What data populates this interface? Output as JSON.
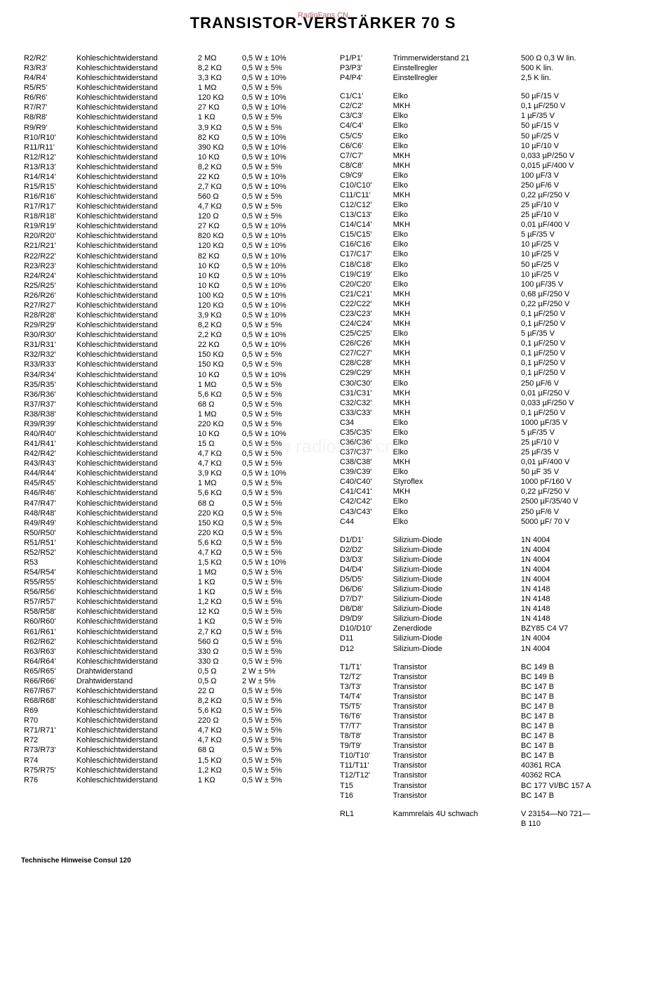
{
  "title": "TRANSISTOR-VERSTÄRKER 70 S",
  "watermark_top": "RadioFans.CN",
  "watermark_mid": "www     radiofans cn",
  "footer": "Technische Hinweise Consul 120",
  "left": [
    {
      "r": "R2/R2'",
      "t": "Kohleschichtwiderstand",
      "v": "2 MΩ",
      "p": "0,5 W ± 10%"
    },
    {
      "r": "R3/R3'",
      "t": "Kohleschichtwiderstand",
      "v": "8,2 KΩ",
      "p": "0,5 W ±   5%"
    },
    {
      "r": "R4/R4'",
      "t": "Kohleschichtwiderstand",
      "v": "3,3 KΩ",
      "p": "0,5 W ± 10%"
    },
    {
      "r": "R5/R5'",
      "t": "Kohleschichtwiderstand",
      "v": "1 MΩ",
      "p": "0,5 W ±   5%"
    },
    {
      "r": "R6/R6'",
      "t": "Kohleschichtwiderstand",
      "v": "120 KΩ",
      "p": "0,5 W ± 10%"
    },
    {
      "r": "R7/R7'",
      "t": "Kohleschichtwiderstand",
      "v": "27 KΩ",
      "p": "0,5 W ± 10%"
    },
    {
      "r": "R8/R8'",
      "t": "Kohleschichtwiderstand",
      "v": "1 KΩ",
      "p": "0,5 W ±   5%"
    },
    {
      "r": "R9/R9'",
      "t": "Kohleschichtwiderstand",
      "v": "3,9 KΩ",
      "p": "0,5 W ±   5%"
    },
    {
      "r": "R10/R10'",
      "t": "Kohleschichtwiderstand",
      "v": "82 KΩ",
      "p": "0,5 W ± 10%"
    },
    {
      "r": "R11/R11'",
      "t": "Kohleschichtwiderstand",
      "v": "390 KΩ",
      "p": "0,5 W ± 10%"
    },
    {
      "r": "R12/R12'",
      "t": "Kohleschichtwiderstand",
      "v": "10 KΩ",
      "p": "0,5 W ± 10%"
    },
    {
      "r": "R13/R13'",
      "t": "Kohleschichtwiderstand",
      "v": "8,2 KΩ",
      "p": "0,5 W ±   5%"
    },
    {
      "r": "R14/R14'",
      "t": "Kohleschichtwiderstand",
      "v": "22 KΩ",
      "p": "0,5 W ± 10%"
    },
    {
      "r": "R15/R15'",
      "t": "Kohleschichtwiderstand",
      "v": "2,7 KΩ",
      "p": "0,5 W ± 10%"
    },
    {
      "r": "R16/R16'",
      "t": "Kohleschichtwiderstand",
      "v": "560 Ω",
      "p": "0,5 W ±   5%"
    },
    {
      "r": "R17/R17'",
      "t": "Kohleschichtwiderstand",
      "v": "4,7 KΩ",
      "p": "0,5 W ±   5%"
    },
    {
      "r": "R18/R18'",
      "t": "Kohleschichtwiderstand",
      "v": "120 Ω",
      "p": "0,5 W ±   5%"
    },
    {
      "r": "R19/R19'",
      "t": "Kohleschichtwiderstand",
      "v": "27 KΩ",
      "p": "0,5 W ± 10%"
    },
    {
      "r": "R20/R20'",
      "t": "Kohleschichtwiderstand",
      "v": "820 KΩ",
      "p": "0,5 W ± 10%"
    },
    {
      "r": "R21/R21'",
      "t": "Kohleschichtwiderstand",
      "v": "120 KΩ",
      "p": "0,5 W ± 10%"
    },
    {
      "r": "R22/R22'",
      "t": "Kohleschichtwiderstand",
      "v": "82 KΩ",
      "p": "0,5 W ± 10%"
    },
    {
      "r": "R23/R23'",
      "t": "Kohleschichtwiderstand",
      "v": "10 KΩ",
      "p": "0,5 W ± 10%"
    },
    {
      "r": "R24/R24'",
      "t": "Kohleschichtwiderstand",
      "v": "10 KΩ",
      "p": "0,5 W ± 10%"
    },
    {
      "r": "R25/R25'",
      "t": "Kohleschichtwiderstand",
      "v": "10 KΩ",
      "p": "0,5 W ± 10%"
    },
    {
      "r": "R26/R26'",
      "t": "Kohleschichtwiderstand",
      "v": "100 KΩ",
      "p": "0,5 W ± 10%"
    },
    {
      "r": "R27/R27'",
      "t": "Kohleschichtwiderstand",
      "v": "120 KΩ",
      "p": "0,5 W ± 10%"
    },
    {
      "r": "R28/R28'",
      "t": "Kohleschichtwiderstand",
      "v": "3,9 KΩ",
      "p": "0,5 W ± 10%"
    },
    {
      "r": "R29/R29'",
      "t": "Kohleschichtwiderstand",
      "v": "8,2 KΩ",
      "p": "0,5 W ±   5%"
    },
    {
      "r": "R30/R30'",
      "t": "Kohleschichtwiderstand",
      "v": "2,2 KΩ",
      "p": "0,5 W ± 10%"
    },
    {
      "r": "R31/R31'",
      "t": "Kohleschichtwiderstand",
      "v": "22 KΩ",
      "p": "0,5 W ± 10%"
    },
    {
      "r": "R32/R32'",
      "t": "Kohleschichtwiderstand",
      "v": "150 KΩ",
      "p": "0,5 W ±   5%"
    },
    {
      "r": "R33/R33'",
      "t": "Kohleschichtwiderstand",
      "v": "150 KΩ",
      "p": "0,5 W ±   5%"
    },
    {
      "r": "R34/R34'",
      "t": "Kohleschichtwiderstand",
      "v": "10 KΩ",
      "p": "0,5 W ± 10%"
    },
    {
      "r": "R35/R35'",
      "t": "Kohleschichtwiderstand",
      "v": "1 MΩ",
      "p": "0,5 W ±   5%"
    },
    {
      "r": "R36/R36'",
      "t": "Kohleschichtwiderstand",
      "v": "5,6 KΩ",
      "p": "0,5 W ±   5%"
    },
    {
      "r": "R37/R37'",
      "t": "Kohleschichtwiderstand",
      "v": "68 Ω",
      "p": "0,5 W ±   5%"
    },
    {
      "r": "R38/R38'",
      "t": "Kohleschichtwiderstand",
      "v": "1 MΩ",
      "p": "0,5 W ±   5%"
    },
    {
      "r": "R39/R39'",
      "t": "Kohleschichtwiderstand",
      "v": "220 KΩ",
      "p": "0,5 W ±   5%"
    },
    {
      "r": "R40/R40'",
      "t": "Kohleschichtwiderstand",
      "v": "10 KΩ",
      "p": "0,5 W ± 10%"
    },
    {
      "r": "R41/R41'",
      "t": "Kohleschichtwiderstand",
      "v": "15 Ω",
      "p": "0,5 W ±   5%"
    },
    {
      "r": "R42/R42'",
      "t": "Kohleschichtwiderstand",
      "v": "4,7 KΩ",
      "p": "0,5 W ±   5%"
    },
    {
      "r": "R43/R43'",
      "t": "Kohleschichtwiderstand",
      "v": "4,7 KΩ",
      "p": "0,5 W ±   5%"
    },
    {
      "r": "R44/R44'",
      "t": "Kohleschichtwiderstand",
      "v": "3,9 KΩ",
      "p": "0,5 W ± 10%"
    },
    {
      "r": "R45/R45'",
      "t": "Kohleschichtwiderstand",
      "v": "1 MΩ",
      "p": "0,5 W ±   5%"
    },
    {
      "r": "R46/R46'",
      "t": "Kohleschichtwiderstand",
      "v": "5,6 KΩ",
      "p": "0,5 W ±   5%"
    },
    {
      "r": "R47/R47'",
      "t": "Kohleschichtwiderstand",
      "v": "68 Ω",
      "p": "0,5 W ±   5%"
    },
    {
      "r": "R48/R48'",
      "t": "Kohleschichtwiderstand",
      "v": "220 KΩ",
      "p": "0,5 W ±   5%"
    },
    {
      "r": "R49/R49'",
      "t": "Kohleschichtwiderstand",
      "v": "150 KΩ",
      "p": "0,5 W ±   5%"
    },
    {
      "r": "R50/R50'",
      "t": "Kohleschichtwiderstand",
      "v": "220 KΩ",
      "p": "0,5 W ±   5%"
    },
    {
      "r": "R51/R51'",
      "t": "Kohleschichtwiderstand",
      "v": "5,6 KΩ",
      "p": "0,5 W ±   5%"
    },
    {
      "r": "R52/R52'",
      "t": "Kohleschichtwiderstand",
      "v": "4,7 KΩ",
      "p": "0,5 W ±   5%"
    },
    {
      "r": "R53",
      "t": "Kohleschichtwiderstand",
      "v": "1,5 KΩ",
      "p": "0,5 W ± 10%"
    },
    {
      "r": "R54/R54'",
      "t": "Kohleschichtwiderstand",
      "v": "1 MΩ",
      "p": "0,5 W ±   5%"
    },
    {
      "r": "R55/R55'",
      "t": "Kohleschichtwiderstand",
      "v": "1 KΩ",
      "p": "0,5 W ±   5%"
    },
    {
      "r": "R56/R56'",
      "t": "Kohleschichtwiderstand",
      "v": "1 KΩ",
      "p": "0,5 W ±   5%"
    },
    {
      "r": "R57/R57'",
      "t": "Kohleschichtwiderstand",
      "v": "1,2 KΩ",
      "p": "0,5 W ±   5%"
    },
    {
      "r": "R58/R58'",
      "t": "Kohleschichtwiderstand",
      "v": "12 KΩ",
      "p": "0,5 W ±   5%"
    },
    {
      "r": "R60/R60'",
      "t": "Kohleschichtwiderstand",
      "v": "1 KΩ",
      "p": "0,5 W ±   5%"
    },
    {
      "r": "R61/R61'",
      "t": "Kohleschichtwiderstand",
      "v": "2,7 KΩ",
      "p": "0,5 W ±   5%"
    },
    {
      "r": "R62/R62'",
      "t": "Kohleschichtwiderstand",
      "v": "560 Ω",
      "p": "0,5 W ±   5%"
    },
    {
      "r": "R63/R63'",
      "t": "Kohleschichtwiderstand",
      "v": "330 Ω",
      "p": "0,5 W ±   5%"
    },
    {
      "r": "R64/R64'",
      "t": "Kohleschichtwiderstand",
      "v": "330 Ω",
      "p": "0,5 W ±   5%"
    },
    {
      "r": "R65/R65'",
      "t": "Drahtwiderstand",
      "v": "0,5 Ω",
      "p": "2 W ±   5%"
    },
    {
      "r": "R66/R66'",
      "t": "Drahtwiderstand",
      "v": "0,5 Ω",
      "p": "2 W ±   5%"
    },
    {
      "r": "R67/R67'",
      "t": "Kohleschichtwiderstand",
      "v": "22 Ω",
      "p": "0,5 W ±   5%"
    },
    {
      "r": "R68/R68'",
      "t": "Kohleschichtwiderstand",
      "v": "8,2 KΩ",
      "p": "0,5 W ±   5%"
    },
    {
      "r": "R69",
      "t": "Kohleschichtwiderstand",
      "v": "5,6 KΩ",
      "p": "0,5 W ±   5%"
    },
    {
      "r": "R70",
      "t": "Kohleschichtwiderstand",
      "v": "220 Ω",
      "p": "0,5 W ±   5%"
    },
    {
      "r": "R71/R71'",
      "t": "Kohleschichtwiderstand",
      "v": "4,7 KΩ",
      "p": "0,5 W ±   5%"
    },
    {
      "r": "R72",
      "t": "Kohleschichtwiderstand",
      "v": "4,7 KΩ",
      "p": "0,5 W ±   5%"
    },
    {
      "r": "R73/R73'",
      "t": "Kohleschichtwiderstand",
      "v": "68 Ω",
      "p": "0,5 W ±   5%"
    },
    {
      "r": "R74",
      "t": "Kohleschichtwiderstand",
      "v": "1,5 KΩ",
      "p": "0,5 W ±   5%"
    },
    {
      "r": "R75/R75'",
      "t": "Kohleschichtwiderstand",
      "v": "1,2 KΩ",
      "p": "0,5 W ±   5%"
    },
    {
      "r": "R76",
      "t": "Kohleschichtwiderstand",
      "v": "1 KΩ",
      "p": "0,5 W ±   5%"
    }
  ],
  "right": [
    [
      {
        "r": "P1/P1'",
        "t": "Trimmerwiderstand 21",
        "v": "500 Ω  0,3 W lin."
      },
      {
        "r": "P3/P3'",
        "t": "Einstellregler",
        "v": "500 K lin."
      },
      {
        "r": "P4/P4'",
        "t": "Einstellregler",
        "v": "2,5 K lin."
      }
    ],
    [
      {
        "r": "C1/C1'",
        "t": "Elko",
        "v": "50 µF/15 V"
      },
      {
        "r": "C2/C2'",
        "t": "MKH",
        "v": "0,1 µF/250 V"
      },
      {
        "r": "C3/C3'",
        "t": "Elko",
        "v": "1 µF/35 V"
      },
      {
        "r": "C4/C4'",
        "t": "Elko",
        "v": "50 µF/15 V"
      },
      {
        "r": "C5/C5'",
        "t": "Elko",
        "v": "50 µF/25 V"
      },
      {
        "r": "C6/C6'",
        "t": "Elko",
        "v": "10 µF/10 V"
      },
      {
        "r": "C7/C7'",
        "t": "MKH",
        "v": "0,033 µP/250 V"
      },
      {
        "r": "C8/C8'",
        "t": "MKH",
        "v": "0,015 µF/400 V"
      },
      {
        "r": "C9/C9'",
        "t": "Elko",
        "v": "100 µF/3 V"
      },
      {
        "r": "C10/C10'",
        "t": "Elko",
        "v": "250 µF/6 V"
      },
      {
        "r": "C11/C11'",
        "t": "MKH",
        "v": "0,22 µF/250 V"
      },
      {
        "r": "C12/C12'",
        "t": "Elko",
        "v": "25 µF/10 V"
      },
      {
        "r": "C13/C13'",
        "t": "Elko",
        "v": "25 µF/10 V"
      },
      {
        "r": "C14/C14'",
        "t": "MKH",
        "v": "0,01 µF/400 V"
      },
      {
        "r": "C15/C15'",
        "t": "Elko",
        "v": "5 µF/35 V"
      },
      {
        "r": "C16/C16'",
        "t": "Elko",
        "v": "10 µF/25 V"
      },
      {
        "r": "C17/C17'",
        "t": "Elko",
        "v": "10 µF/25 V"
      },
      {
        "r": "C18/C18'",
        "t": "Elko",
        "v": "50 µF/25 V"
      },
      {
        "r": "C19/C19'",
        "t": "Elko",
        "v": "10 µF/25 V"
      },
      {
        "r": "C20/C20'",
        "t": "Elko",
        "v": "100 µF/35 V"
      },
      {
        "r": "C21/C21'",
        "t": "MKH",
        "v": "0,68 µF/250 V"
      },
      {
        "r": "C22/C22'",
        "t": "MKH",
        "v": "0,22 µF/250 V"
      },
      {
        "r": "C23/C23'",
        "t": "MKH",
        "v": "0,1 µF/250 V"
      },
      {
        "r": "C24/C24'",
        "t": "MKH",
        "v": "0,1 µF/250 V"
      },
      {
        "r": "C25/C25'",
        "t": "Elko",
        "v": "5 µF/35 V"
      },
      {
        "r": "C26/C26'",
        "t": "MKH",
        "v": "0,1 µF/250 V"
      },
      {
        "r": "C27/C27'",
        "t": "MKH",
        "v": "0,1 µF/250 V"
      },
      {
        "r": "C28/C28'",
        "t": "MKH",
        "v": "0,1 µF/250 V"
      },
      {
        "r": "C29/C29'",
        "t": "MKH",
        "v": "0,1 µF/250 V"
      },
      {
        "r": "C30/C30'",
        "t": "Elko",
        "v": "250 µF/6 V"
      },
      {
        "r": "C31/C31'",
        "t": "MKH",
        "v": "0,01 µF/250 V"
      },
      {
        "r": "C32/C32'",
        "t": "MKH",
        "v": "0,033 µF/250 V"
      },
      {
        "r": "C33/C33'",
        "t": "MKH",
        "v": "0,1 µF/250 V"
      },
      {
        "r": "C34",
        "t": "Elko",
        "v": "1000 µF/35 V"
      },
      {
        "r": "C35/C35'",
        "t": "Elko",
        "v": "5 µF/35 V"
      },
      {
        "r": "C36/C36'",
        "t": "Elko",
        "v": "25 µF/10 V"
      },
      {
        "r": "C37/C37'",
        "t": "Elko",
        "v": "25 µF/35 V"
      },
      {
        "r": "C38/C38'",
        "t": "MKH",
        "v": "0,01 µF/400 V"
      },
      {
        "r": "C39/C39'",
        "t": "Elko",
        "v": "50 µF 35 V"
      },
      {
        "r": "C40/C40'",
        "t": "Styroflex",
        "v": "1000 pF/160 V"
      },
      {
        "r": "C41/C41'",
        "t": "MKH",
        "v": "0,22 µF/250 V"
      },
      {
        "r": "C42/C42'",
        "t": "Elko",
        "v": "2500 µF/35/40 V"
      },
      {
        "r": "C43/C43'",
        "t": "Elko",
        "v": "250 µF/6 V"
      },
      {
        "r": "C44",
        "t": "Elko",
        "v": "5000 µF/ 70 V"
      }
    ],
    [
      {
        "r": "D1/D1'",
        "t": "Silizium-Diode",
        "v": "1N 4004"
      },
      {
        "r": "D2/D2'",
        "t": "Silizium-Diode",
        "v": "1N 4004"
      },
      {
        "r": "D3/D3'",
        "t": "Silizium-Diode",
        "v": "1N 4004"
      },
      {
        "r": "D4/D4'",
        "t": "Silizium-Diode",
        "v": "1N 4004"
      },
      {
        "r": "D5/D5'",
        "t": "Silizium-Diode",
        "v": "1N 4004"
      },
      {
        "r": "D6/D6'",
        "t": "Silizium-Diode",
        "v": "1N 4148"
      },
      {
        "r": "D7/D7'",
        "t": "Silizium-Diode",
        "v": "1N 4148"
      },
      {
        "r": "D8/D8'",
        "t": "Silizium-Diode",
        "v": "1N 4148"
      },
      {
        "r": "D9/D9'",
        "t": "Silizium-Diode",
        "v": "1N 4148"
      },
      {
        "r": "D10/D10'",
        "t": "Zenerdiode",
        "v": "BZY85 C4 V7"
      },
      {
        "r": "D11",
        "t": "Silizium-Diode",
        "v": "1N 4004"
      },
      {
        "r": "D12",
        "t": "Silizium-Diode",
        "v": "1N 4004"
      }
    ],
    [
      {
        "r": "T1/T1'",
        "t": "Transistor",
        "v": "BC 149 B"
      },
      {
        "r": "T2/T2'",
        "t": "Transistor",
        "v": "BC 149 B"
      },
      {
        "r": "T3/T3'",
        "t": "Transistor",
        "v": "BC 147 B"
      },
      {
        "r": "T4/T4'",
        "t": "Transistor",
        "v": "BC 147 B"
      },
      {
        "r": "T5/T5'",
        "t": "Transistor",
        "v": "BC 147 B"
      },
      {
        "r": "T6/T6'",
        "t": "Transistor",
        "v": "BC 147 B"
      },
      {
        "r": "T7/T7'",
        "t": "Transistor",
        "v": "BC 147 B"
      },
      {
        "r": "T8/T8'",
        "t": "Transistor",
        "v": "BC 147 B"
      },
      {
        "r": "T9/T9'",
        "t": "Transistor",
        "v": "BC 147 B"
      },
      {
        "r": "T10/T10'",
        "t": "Transistor",
        "v": "BC 147 B"
      },
      {
        "r": "T11/T11'",
        "t": "Transistor",
        "v": "40361 RCA"
      },
      {
        "r": "T12/T12'",
        "t": "Transistor",
        "v": "40362 RCA"
      },
      {
        "r": "T15",
        "t": "Transistor",
        "v": "BC 177 VI/BC 157 A"
      },
      {
        "r": "T16",
        "t": "Transistor",
        "v": "BC 147 B"
      }
    ],
    [
      {
        "r": "RL1",
        "t": "Kammrelais 4U schwach",
        "v": "V 23154—N0 721—"
      },
      {
        "r": "",
        "t": "",
        "v": "B 110"
      }
    ]
  ]
}
